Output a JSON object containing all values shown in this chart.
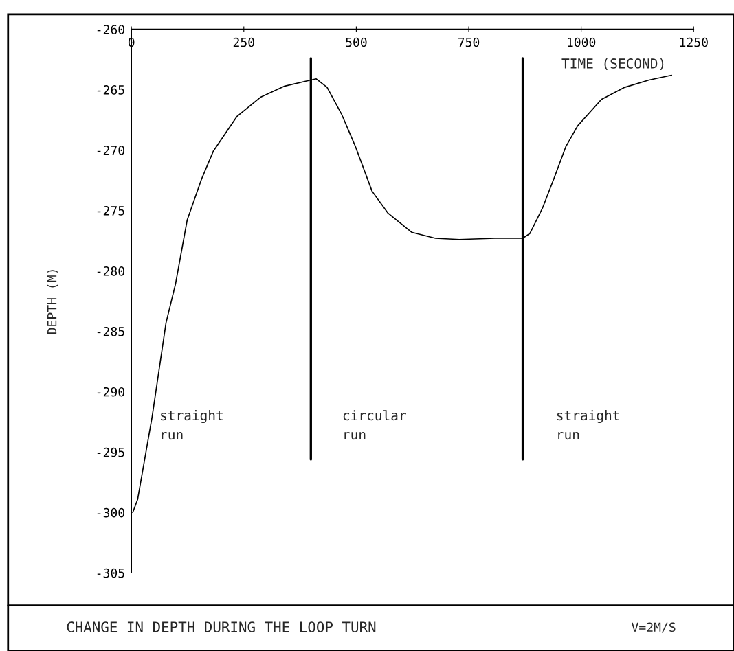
{
  "chart_data": {
    "type": "line",
    "title": "CHANGE IN DEPTH DURING THE LOOP TURN",
    "subtitle": "V=2M/S",
    "xlabel": "TIME (SECOND)",
    "ylabel": "DEPTH (M)",
    "xlim": [
      0,
      1250
    ],
    "xticks": [
      0,
      250,
      500,
      750,
      1000,
      1250
    ],
    "ylim": [
      -305,
      -260
    ],
    "yticks": [
      -305,
      -300,
      -295,
      -290,
      -285,
      -280,
      -275,
      -270,
      -265,
      -260
    ],
    "grid": false,
    "legend": false,
    "marker": "none",
    "line_style": "solid",
    "series": [
      {
        "color": "#000000",
        "x": [
          3,
          14,
          46,
          77,
          98,
          124,
          156,
          182,
          235,
          288,
          341,
          399,
          411,
          435,
          467,
          498,
          535,
          570,
          623,
          676,
          729,
          808,
          870,
          886,
          914,
          940,
          966,
          992,
          1045,
          1097,
          1151,
          1201
        ],
        "values": [
          -300,
          -298.9,
          -292.1,
          -284.3,
          -281.1,
          -275.8,
          -272.4,
          -270.1,
          -267.2,
          -265.6,
          -264.7,
          -264.2,
          -264.1,
          -264.8,
          -267.0,
          -269.7,
          -273.4,
          -275.2,
          -276.8,
          -277.3,
          -277.4,
          -277.3,
          -277.3,
          -276.9,
          -274.8,
          -272.3,
          -269.7,
          -268.0,
          -265.8,
          -264.8,
          -264.2,
          -263.8
        ]
      },
      {
        "color": "#000000",
        "x": [
          399,
          399
        ],
        "values": [
          -262.4,
          -295.6
        ]
      },
      {
        "color": "#000000",
        "x": [
          870,
          870
        ],
        "values": [
          -262.4,
          -295.6
        ]
      }
    ],
    "annotations": [
      "straight\nrun",
      "circular\nrun",
      "straight\nrun"
    ]
  }
}
